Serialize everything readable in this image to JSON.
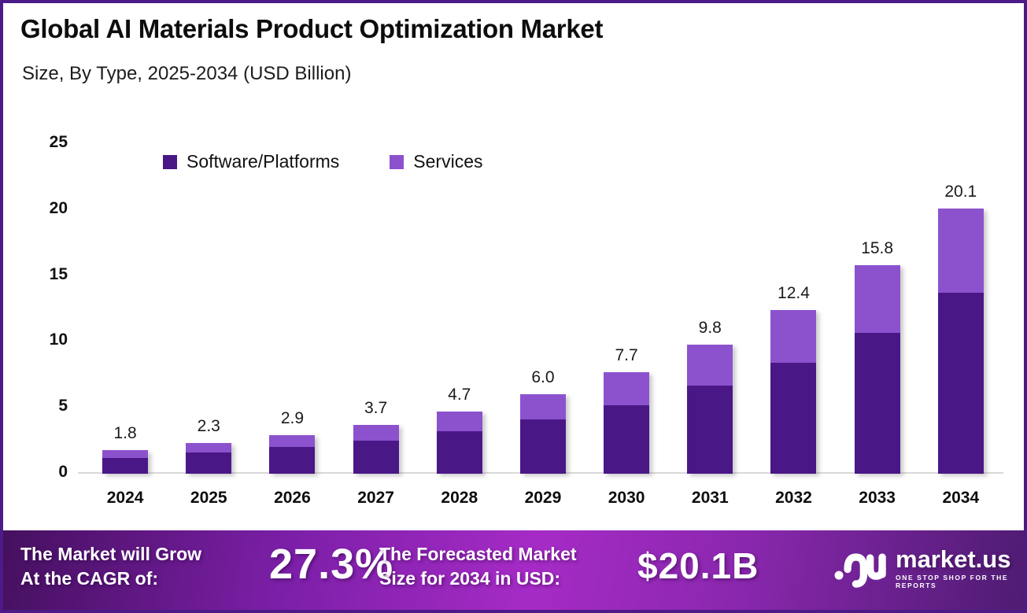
{
  "header": {
    "title": "Global AI Materials Product Optimization Market",
    "subtitle": "Size, By Type, 2025-2034 (USD Billion)"
  },
  "chart_data": {
    "type": "bar",
    "stacked": true,
    "title": "Global AI Materials Product Optimization Market Size, By Type, 2025-2034 (USD Billion)",
    "xlabel": "",
    "ylabel": "",
    "ylim": [
      0,
      25
    ],
    "yticks": [
      0,
      5,
      10,
      15,
      20,
      25
    ],
    "grid": false,
    "legend_position": "top-left",
    "categories": [
      "2024",
      "2025",
      "2026",
      "2027",
      "2028",
      "2029",
      "2030",
      "2031",
      "2032",
      "2033",
      "2034"
    ],
    "series": [
      {
        "name": "Software/Platforms",
        "color": "#4A1787",
        "values": [
          1.2,
          1.6,
          2.0,
          2.5,
          3.2,
          4.1,
          5.2,
          6.7,
          8.4,
          10.7,
          13.7
        ]
      },
      {
        "name": "Services",
        "color": "#8C52CE",
        "values": [
          0.6,
          0.7,
          0.9,
          1.2,
          1.5,
          1.9,
          2.5,
          3.1,
          4.0,
          5.1,
          6.4
        ]
      }
    ],
    "total_labels": [
      "1.8",
      "2.3",
      "2.9",
      "3.7",
      "4.7",
      "6.0",
      "7.7",
      "9.8",
      "12.4",
      "15.8",
      "20.1"
    ]
  },
  "banner": {
    "cagr_line1": "The Market will Grow",
    "cagr_line2": "At the CAGR of:",
    "cagr_value": "27.3%",
    "forecast_line1": "The Forecasted Market",
    "forecast_line2": "Size for 2034 in USD:",
    "forecast_value": "$20.1B",
    "logo_text": "market.us",
    "logo_tagline": "ONE STOP SHOP FOR THE REPORTS"
  },
  "colors": {
    "frame_border": "#4D1B87",
    "axis_line": "#D9D9D9",
    "software_bar": "#4A1787",
    "services_bar": "#8C52CE"
  }
}
